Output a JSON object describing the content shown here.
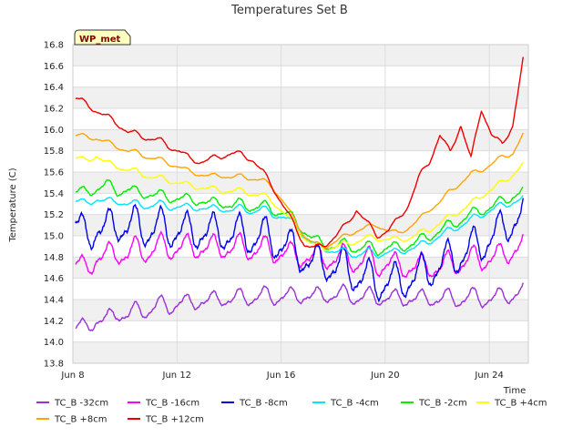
{
  "chart_data": {
    "type": "line",
    "title": "Temperatures Set B",
    "xlabel": "Time",
    "ylabel": "Temperature (C)",
    "badge": "WP_met",
    "xlim": [
      8,
      25.5
    ],
    "ylim": [
      13.8,
      16.8
    ],
    "yticks": [
      "13.8",
      "14.0",
      "14.2",
      "14.4",
      "14.6",
      "14.8",
      "15.0",
      "15.2",
      "15.4",
      "15.6",
      "15.8",
      "16.0",
      "16.2",
      "16.4",
      "16.6",
      "16.8"
    ],
    "xticks": [
      {
        "day": 8,
        "label": "Jun 8"
      },
      {
        "day": 12,
        "label": "Jun 12"
      },
      {
        "day": 16,
        "label": "Jun 16"
      },
      {
        "day": 20,
        "label": "Jun 20"
      },
      {
        "day": 24,
        "label": "Jun 24"
      }
    ],
    "grid": true,
    "legend_position": "bottom",
    "series": [
      {
        "name": "TC_B -32cm",
        "color": "#9b30d9",
        "x": [
          8.1,
          8.5,
          8.9,
          9.3,
          9.7,
          10.1,
          10.5,
          10.9,
          11.3,
          11.7,
          12.1,
          12.5,
          12.9,
          13.3,
          13.7,
          14.1,
          14.5,
          14.9,
          15.3,
          15.7,
          16.1,
          16.5,
          16.9,
          17.3,
          17.7,
          18.1,
          18.5,
          18.9,
          19.3,
          19.7,
          20.1,
          20.5,
          20.9,
          21.3,
          21.7,
          22.1,
          22.5,
          22.9,
          23.3,
          23.7,
          24.1,
          24.5,
          24.9,
          25.3
        ],
        "mean": [
          14.15,
          14.12,
          14.22,
          14.2,
          14.28,
          14.25,
          14.3,
          14.3,
          14.35,
          14.33,
          14.38,
          14.35,
          14.4,
          14.38,
          14.42,
          14.4,
          14.42,
          14.42,
          14.44,
          14.42,
          14.44,
          14.42,
          14.45,
          14.42,
          14.45,
          14.44,
          14.45,
          14.42,
          14.43,
          14.42,
          14.42,
          14.4,
          14.42,
          14.4,
          14.42,
          14.4,
          14.42,
          14.4,
          14.43,
          14.4,
          14.42,
          14.42,
          14.45,
          14.49
        ],
        "amp": 0.14
      },
      {
        "name": "TC_B -16cm",
        "color": "#ff00ff",
        "x": [
          8.1,
          8.5,
          8.9,
          9.3,
          9.7,
          10.1,
          10.5,
          10.9,
          11.3,
          11.7,
          12.1,
          12.5,
          12.9,
          13.3,
          13.7,
          14.1,
          14.5,
          14.9,
          15.3,
          15.7,
          16.1,
          16.5,
          16.9,
          17.3,
          17.7,
          18.1,
          18.5,
          18.9,
          19.3,
          19.7,
          20.1,
          20.5,
          20.9,
          21.3,
          21.7,
          22.1,
          22.5,
          22.9,
          23.3,
          23.7,
          24.1,
          24.5,
          24.9,
          25.3
        ],
        "mean": [
          14.76,
          14.65,
          14.82,
          14.8,
          14.85,
          14.82,
          14.88,
          14.85,
          14.9,
          14.88,
          14.9,
          14.88,
          14.9,
          14.88,
          14.9,
          14.88,
          14.9,
          14.87,
          14.88,
          14.85,
          14.85,
          14.8,
          14.82,
          14.78,
          14.8,
          14.78,
          14.8,
          14.75,
          14.78,
          14.72,
          14.75,
          14.7,
          14.72,
          14.7,
          14.72,
          14.7,
          14.74,
          14.75,
          14.78,
          14.78,
          14.8,
          14.8,
          14.88,
          14.92
        ],
        "amp": 0.2
      },
      {
        "name": "TC_B -8cm",
        "color": "#0000ee",
        "x": [
          8.1,
          8.5,
          8.9,
          9.3,
          9.7,
          10.1,
          10.5,
          10.9,
          11.3,
          11.7,
          12.1,
          12.5,
          12.9,
          13.3,
          13.7,
          14.1,
          14.5,
          14.9,
          15.3,
          15.7,
          16.1,
          16.5,
          16.9,
          17.3,
          17.7,
          18.1,
          18.5,
          18.9,
          19.3,
          19.7,
          20.1,
          20.5,
          20.9,
          21.3,
          21.7,
          22.1,
          22.5,
          22.9,
          23.3,
          23.7,
          24.1,
          24.5,
          24.9,
          25.3
        ],
        "mean": [
          15.15,
          14.95,
          15.1,
          15.05,
          15.12,
          15.08,
          15.1,
          15.05,
          15.08,
          15.05,
          15.06,
          15.02,
          15.05,
          15.02,
          15.04,
          15.0,
          15.02,
          14.98,
          15.0,
          14.95,
          14.92,
          14.85,
          14.8,
          14.72,
          14.75,
          14.7,
          14.7,
          14.62,
          14.6,
          14.55,
          14.58,
          14.55,
          14.6,
          14.62,
          14.68,
          14.72,
          14.78,
          14.82,
          14.88,
          14.92,
          15.0,
          15.05,
          15.15,
          15.2
        ],
        "amp": 0.3
      },
      {
        "name": "TC_B -4cm",
        "color": "#00e5ff",
        "x": [
          8.1,
          8.5,
          8.9,
          9.3,
          9.7,
          10.1,
          10.5,
          10.9,
          11.3,
          11.7,
          12.1,
          12.5,
          12.9,
          13.3,
          13.7,
          14.1,
          14.5,
          14.9,
          15.3,
          15.7,
          16.1,
          16.5,
          16.9,
          17.3,
          17.7,
          18.1,
          18.5,
          18.9,
          19.3,
          19.7,
          20.1,
          20.5,
          20.9,
          21.3,
          21.7,
          22.1,
          22.5,
          22.9,
          23.3,
          23.7,
          24.1,
          24.5,
          24.9,
          25.3
        ],
        "mean": [
          15.33,
          15.3,
          15.35,
          15.32,
          15.33,
          15.3,
          15.3,
          15.28,
          15.3,
          15.27,
          15.28,
          15.26,
          15.27,
          15.25,
          15.26,
          15.24,
          15.26,
          15.23,
          15.25,
          15.2,
          15.18,
          15.1,
          15.0,
          14.9,
          14.88,
          14.85,
          14.85,
          14.82,
          14.85,
          14.82,
          14.85,
          14.84,
          14.88,
          14.9,
          14.95,
          15.0,
          15.05,
          15.1,
          15.15,
          15.2,
          15.25,
          15.28,
          15.32,
          15.35
        ],
        "amp": 0.06
      },
      {
        "name": "TC_B -2cm",
        "color": "#00ee00",
        "x": [
          8.1,
          8.5,
          8.9,
          9.3,
          9.7,
          10.1,
          10.5,
          10.9,
          11.3,
          11.7,
          12.1,
          12.5,
          12.9,
          13.3,
          13.7,
          14.1,
          14.5,
          14.9,
          15.3,
          15.7,
          16.1,
          16.5,
          16.9,
          17.3,
          17.7,
          18.1,
          18.5,
          18.9,
          19.3,
          19.7,
          20.1,
          20.5,
          20.9,
          21.3,
          21.7,
          22.1,
          22.5,
          22.9,
          23.3,
          23.7,
          24.1,
          24.5,
          24.9,
          25.3
        ],
        "mean": [
          15.42,
          15.4,
          15.45,
          15.48,
          15.42,
          15.44,
          15.4,
          15.4,
          15.38,
          15.36,
          15.36,
          15.33,
          15.34,
          15.3,
          15.32,
          15.28,
          15.3,
          15.27,
          15.28,
          15.24,
          15.22,
          15.15,
          15.05,
          14.95,
          14.92,
          14.9,
          14.92,
          14.88,
          14.9,
          14.86,
          14.9,
          14.88,
          14.92,
          14.95,
          15.0,
          15.05,
          15.1,
          15.15,
          15.2,
          15.24,
          15.28,
          15.32,
          15.38,
          15.42
        ],
        "amp": 0.09
      },
      {
        "name": "TC_B +4cm",
        "color": "#ffff00",
        "x": [
          8.1,
          8.5,
          8.9,
          9.3,
          9.7,
          10.1,
          10.5,
          10.9,
          11.3,
          11.7,
          12.1,
          12.5,
          12.9,
          13.3,
          13.7,
          14.1,
          14.5,
          14.9,
          15.3,
          15.7,
          16.1,
          16.5,
          16.9,
          17.3,
          17.7,
          18.1,
          18.5,
          18.9,
          19.3,
          19.7,
          20.1,
          20.5,
          20.9,
          21.3,
          21.7,
          22.1,
          22.5,
          22.9,
          23.3,
          23.7,
          24.1,
          24.5,
          24.9,
          25.3
        ],
        "mean": [
          15.74,
          15.7,
          15.76,
          15.68,
          15.66,
          15.62,
          15.6,
          15.56,
          15.54,
          15.52,
          15.5,
          15.47,
          15.46,
          15.44,
          15.43,
          15.42,
          15.42,
          15.4,
          15.38,
          15.32,
          15.22,
          15.1,
          14.98,
          14.9,
          14.88,
          14.9,
          14.92,
          14.95,
          14.98,
          14.98,
          14.97,
          14.96,
          14.98,
          15.02,
          15.06,
          15.12,
          15.18,
          15.24,
          15.3,
          15.38,
          15.44,
          15.5,
          15.58,
          15.67
        ],
        "amp": 0.05
      },
      {
        "name": "TC_B +8cm",
        "color": "#ffa500",
        "x": [
          8.1,
          8.5,
          8.9,
          9.3,
          9.7,
          10.1,
          10.5,
          10.9,
          11.3,
          11.7,
          12.1,
          12.5,
          12.9,
          13.3,
          13.7,
          14.1,
          14.5,
          14.9,
          15.3,
          15.7,
          16.1,
          16.5,
          16.9,
          17.3,
          17.7,
          18.1,
          18.5,
          18.9,
          19.3,
          19.7,
          20.1,
          20.5,
          20.9,
          21.3,
          21.7,
          22.1,
          22.5,
          22.9,
          23.3,
          23.7,
          24.1,
          24.5,
          24.9,
          25.3
        ],
        "mean": [
          15.95,
          15.93,
          15.92,
          15.88,
          15.84,
          15.8,
          15.78,
          15.74,
          15.72,
          15.68,
          15.65,
          15.6,
          15.58,
          15.56,
          15.57,
          15.55,
          15.56,
          15.54,
          15.52,
          15.45,
          15.32,
          15.15,
          15.0,
          14.92,
          14.9,
          14.95,
          15.0,
          15.05,
          15.08,
          15.1,
          15.05,
          15.02,
          15.08,
          15.15,
          15.25,
          15.32,
          15.42,
          15.5,
          15.58,
          15.62,
          15.68,
          15.74,
          15.78,
          15.95
        ],
        "amp": 0.04
      },
      {
        "name": "TC_B +12cm",
        "color": "#ee0000",
        "x": [
          8.1,
          8.5,
          8.9,
          9.3,
          9.7,
          10.1,
          10.5,
          10.9,
          11.3,
          11.7,
          12.1,
          12.5,
          12.9,
          13.3,
          13.7,
          14.1,
          14.5,
          14.9,
          15.3,
          15.7,
          16.1,
          16.5,
          16.9,
          17.3,
          17.7,
          18.1,
          18.5,
          18.9,
          19.3,
          19.7,
          20.1,
          20.5,
          20.9,
          21.3,
          21.7,
          22.1,
          22.5,
          22.9,
          23.3,
          23.7,
          24.1,
          24.5,
          24.9,
          25.3
        ],
        "mean": [
          16.3,
          16.24,
          16.18,
          16.12,
          16.06,
          15.98,
          15.95,
          15.92,
          15.9,
          15.84,
          15.8,
          15.72,
          15.7,
          15.72,
          15.75,
          15.78,
          15.76,
          15.72,
          15.6,
          15.45,
          15.28,
          15.1,
          14.92,
          14.88,
          14.92,
          15.0,
          15.1,
          15.25,
          15.12,
          15.0,
          15.05,
          15.15,
          15.3,
          15.55,
          15.7,
          15.95,
          15.78,
          16.05,
          15.72,
          16.2,
          15.95,
          15.85,
          16.05,
          16.66
        ],
        "amp": 0.05
      }
    ]
  }
}
